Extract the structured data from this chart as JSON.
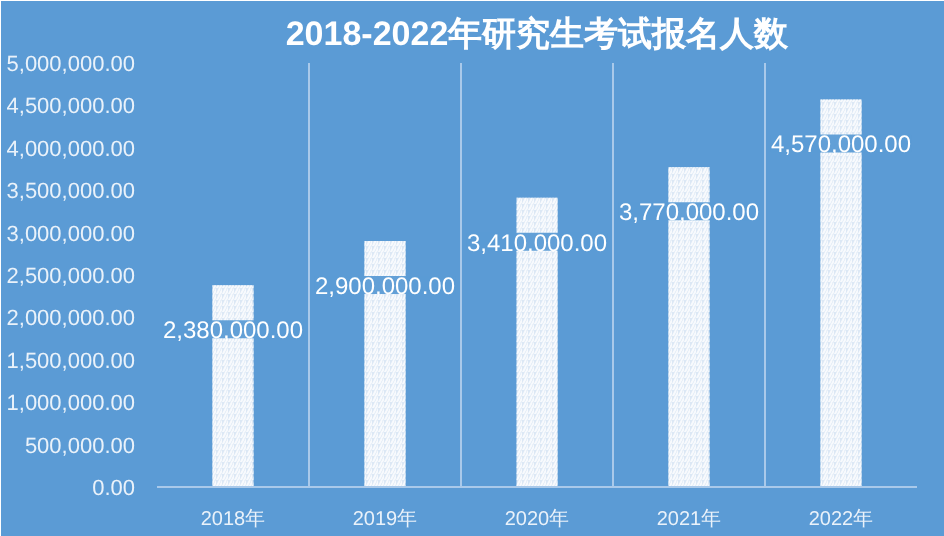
{
  "chart_data": {
    "type": "bar",
    "title": "2018-2022年研究生考试报名人数",
    "categories": [
      "2018年",
      "2019年",
      "2020年",
      "2021年",
      "2022年"
    ],
    "values": [
      2380000,
      2900000,
      3410000,
      3770000,
      4570000
    ],
    "value_labels": [
      "2,380,000.00",
      "2,900,000.00",
      "3,410,000.00",
      "3,770,000.00",
      "4,570,000.00"
    ],
    "color": "#dce8f5",
    "ylim": [
      0,
      5000000
    ],
    "yticks": [
      {
        "value": 0,
        "label": "0.00"
      },
      {
        "value": 500000,
        "label": "500,000.00"
      },
      {
        "value": 1000000,
        "label": "1,000,000.00"
      },
      {
        "value": 1500000,
        "label": "1,500,000.00"
      },
      {
        "value": 2000000,
        "label": "2,000,000.00"
      },
      {
        "value": 2500000,
        "label": "2,500,000.00"
      },
      {
        "value": 3000000,
        "label": "3,000,000.00"
      },
      {
        "value": 3500000,
        "label": "3,500,000.00"
      },
      {
        "value": 4000000,
        "label": "4,000,000.00"
      },
      {
        "value": 4500000,
        "label": "4,500,000.00"
      },
      {
        "value": 5000000,
        "label": "5,000,000.00"
      }
    ],
    "grid": "x"
  }
}
